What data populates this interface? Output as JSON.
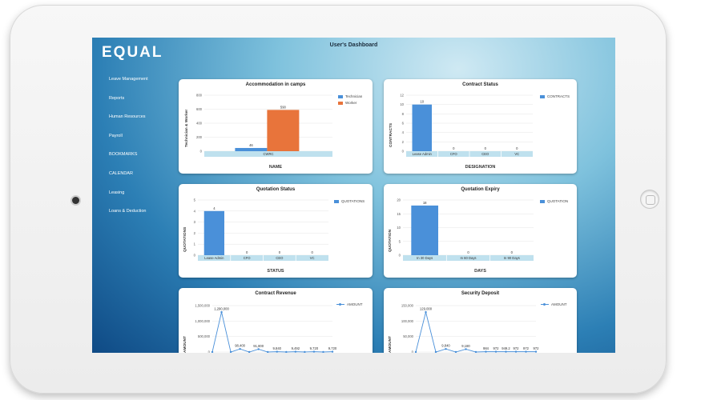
{
  "app": {
    "logo": "EQUAL",
    "title": "User's Dashboard"
  },
  "sidebar": {
    "items": [
      {
        "label": "Leave Management"
      },
      {
        "label": "Reports"
      },
      {
        "label": "Human Resources"
      },
      {
        "label": "Payroll"
      },
      {
        "label": "BOOKMARKS"
      },
      {
        "label": "CALENDAR"
      },
      {
        "label": "Leasing"
      },
      {
        "label": "Loans & Deduction"
      }
    ]
  },
  "colors": {
    "blue": "#4a90d9",
    "orange": "#e8743b",
    "category_band": "#bfe1ee"
  },
  "charts": [
    {
      "id": "accommodation",
      "title": "Accommodation in camps",
      "type": "bar",
      "ylabel": "Technician & Worker",
      "xlabel": "NAME",
      "ylim": [
        0,
        800
      ],
      "yticks": [
        "0",
        "200",
        "400",
        "600",
        "800"
      ],
      "categories": [
        "CWRC"
      ],
      "series": [
        {
          "name": "Technician",
          "color": "#4a90d9",
          "values": [
            46
          ]
        },
        {
          "name": "Worker",
          "color": "#e8743b",
          "values": [
            590
          ]
        }
      ],
      "value_labels": [
        "46",
        "590"
      ]
    },
    {
      "id": "contract-status",
      "title": "Contract Status",
      "type": "bar",
      "ylabel": "CONTRACTS",
      "xlabel": "DESIGNATION",
      "ylim": [
        0,
        12
      ],
      "yticks": [
        "0",
        "2",
        "4",
        "6",
        "8",
        "10",
        "12"
      ],
      "categories": [
        "Lease Admin",
        "CFO",
        "CEO",
        "VC"
      ],
      "series": [
        {
          "name": "CONTRACTS",
          "color": "#4a90d9",
          "values": [
            10,
            0,
            0,
            0
          ]
        }
      ],
      "value_labels": [
        "10",
        "0",
        "0",
        "0"
      ]
    },
    {
      "id": "quotation-status",
      "title": "Quotation Status",
      "type": "bar",
      "ylabel": "QUOTATIONS",
      "xlabel": "STATUS",
      "ylim": [
        0,
        5
      ],
      "yticks": [
        "0",
        "1",
        "2",
        "3",
        "4",
        "5"
      ],
      "categories": [
        "Lease Admin",
        "CFO",
        "CEO",
        "VC"
      ],
      "series": [
        {
          "name": "QUOTATIONS",
          "color": "#4a90d9",
          "values": [
            4,
            0,
            0,
            0
          ]
        }
      ],
      "value_labels": [
        "4",
        "0",
        "0",
        "0"
      ]
    },
    {
      "id": "quotation-expiry",
      "title": "Quotation Expiry",
      "type": "bar",
      "ylabel": "QUOTATION",
      "xlabel": "DAYS",
      "ylim": [
        0,
        20
      ],
      "yticks": [
        "0",
        "5",
        "10",
        "15",
        "20"
      ],
      "categories": [
        "In 30 Days",
        "In 60 Days",
        "In 90 Days"
      ],
      "series": [
        {
          "name": "QUOTATION",
          "color": "#4a90d9",
          "values": [
            18,
            0,
            0
          ]
        }
      ],
      "value_labels": [
        "18",
        "0",
        "0"
      ]
    },
    {
      "id": "contract-revenue",
      "title": "Contract Revenue",
      "type": "line",
      "ylabel": "AMOUNT",
      "xlabel": "",
      "ylim": [
        0,
        1500000
      ],
      "yticks": [
        "0",
        "500,000",
        "1,000,000",
        "1,500,000"
      ],
      "series": [
        {
          "name": "AMOUNT",
          "color": "#4a90d9",
          "values": [
            0,
            1290000,
            0,
            98400,
            0,
            91800,
            0,
            9840,
            0,
            9492,
            0,
            9720,
            0,
            9720
          ],
          "labels": [
            "",
            "1,290,000",
            "",
            "98,400",
            "",
            "91,800",
            "",
            "9,840",
            "",
            "9,492",
            "",
            "9,720",
            "",
            "9,720"
          ]
        }
      ]
    },
    {
      "id": "security-deposit",
      "title": "Security Deposit",
      "type": "line",
      "ylabel": "AMOUNT",
      "xlabel": "",
      "ylim": [
        0,
        150000
      ],
      "yticks": [
        "0",
        "50,000",
        "100,000",
        "150,000"
      ],
      "series": [
        {
          "name": "AMOUNT",
          "color": "#4a90d9",
          "values": [
            0,
            129000,
            0,
            9840,
            0,
            9180,
            0,
            984,
            972,
            949.2,
            972,
            972,
            972
          ],
          "labels": [
            "",
            "129,000",
            "",
            "9,840",
            "",
            "9,180",
            "",
            "984",
            "972",
            "949.2",
            "972",
            "972",
            "972"
          ]
        }
      ]
    }
  ]
}
